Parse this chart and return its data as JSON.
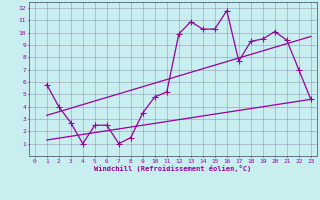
{
  "xlabel": "Windchill (Refroidissement éolien,°C)",
  "background_color": "#c8eef0",
  "line_color": "#990099",
  "grid_color": "#9999bb",
  "xlim": [
    -0.5,
    23.5
  ],
  "ylim": [
    0,
    12.5
  ],
  "xticks": [
    0,
    1,
    2,
    3,
    4,
    5,
    6,
    7,
    8,
    9,
    10,
    11,
    12,
    13,
    14,
    15,
    16,
    17,
    18,
    19,
    20,
    21,
    22,
    23
  ],
  "yticks": [
    1,
    2,
    3,
    4,
    5,
    6,
    7,
    8,
    9,
    10,
    11,
    12
  ],
  "line1_x": [
    1,
    2,
    3,
    4,
    5,
    6,
    7,
    8,
    9,
    10,
    11,
    12,
    13,
    14,
    15,
    16,
    17,
    18,
    19,
    20,
    21,
    22,
    23
  ],
  "line1_y": [
    5.8,
    4.0,
    2.7,
    1.0,
    2.5,
    2.5,
    1.0,
    1.5,
    3.5,
    4.8,
    5.2,
    9.9,
    10.9,
    10.3,
    10.3,
    11.8,
    7.7,
    9.3,
    9.5,
    10.1,
    9.4,
    7.0,
    4.6
  ],
  "line2_x": [
    1,
    23
  ],
  "line2_y": [
    3.3,
    9.7
  ],
  "line3_x": [
    1,
    23
  ],
  "line3_y": [
    1.3,
    4.6
  ],
  "marker": "+",
  "marker_size": 4,
  "linewidth": 0.9
}
